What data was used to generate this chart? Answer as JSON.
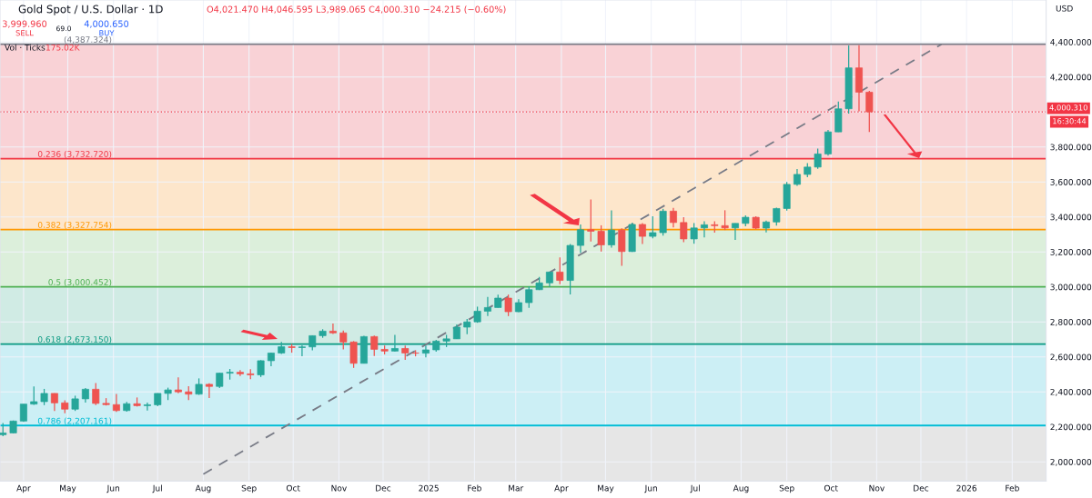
{
  "chart_data": {
    "type": "candlestick",
    "title": "Gold Spot / U.S. Dollar · 1D",
    "subtitle": "O4,021.470 H4,046.595 L3,989.065 C4,000.310 −24.215 (−0.60%)",
    "annotations": [
      "3,999.960",
      "SELL",
      "69.0",
      "4,000.650",
      "BUY",
      "Vol · Ticks",
      "175.02K",
      "USD",
      "16:30:44"
    ],
    "series": [
      {
        "x": [
          "2024-03-18",
          "2024-03-25",
          "2024-04-01",
          "2024-04-08",
          "2024-04-15",
          "2024-04-22",
          "2024-04-29",
          "2024-05-06",
          "2024-05-13",
          "2024-05-20",
          "2024-05-27",
          "2024-06-03",
          "2024-06-10",
          "2024-06-17",
          "2024-06-24",
          "2024-07-01",
          "2024-07-08",
          "2024-07-15",
          "2024-07-22",
          "2024-07-29",
          "2024-08-05",
          "2024-08-12",
          "2024-08-19",
          "2024-08-26",
          "2024-09-02",
          "2024-09-09",
          "2024-09-16",
          "2024-09-23",
          "2024-09-30",
          "2024-10-07",
          "2024-10-14",
          "2024-10-21",
          "2024-10-28",
          "2024-11-04",
          "2024-11-11",
          "2024-11-18",
          "2024-11-25",
          "2024-12-02",
          "2024-12-09",
          "2024-12-16",
          "2024-12-23",
          "2024-12-30",
          "2025-01-06",
          "2025-01-13",
          "2025-01-20",
          "2025-01-27",
          "2025-02-03",
          "2025-02-10",
          "2025-02-17",
          "2025-02-24",
          "2025-03-03",
          "2025-03-10",
          "2025-03-17",
          "2025-03-24",
          "2025-03-31",
          "2025-04-07",
          "2025-04-14",
          "2025-04-21",
          "2025-04-28",
          "2025-05-05",
          "2025-05-12",
          "2025-05-19",
          "2025-05-26",
          "2025-06-02",
          "2025-06-09",
          "2025-06-16",
          "2025-06-23",
          "2025-06-30",
          "2025-07-07",
          "2025-07-14",
          "2025-07-21",
          "2025-07-28",
          "2025-08-04",
          "2025-08-11",
          "2025-08-18",
          "2025-08-25",
          "2025-09-01",
          "2025-09-08",
          "2025-09-15",
          "2025-09-22",
          "2025-09-29",
          "2025-10-06",
          "2025-10-13",
          "2025-10-20",
          "2025-10-27"
        ],
        "ohlc": [
          [
            2155,
            2222,
            2146,
            2165
          ],
          [
            2165,
            2236,
            2163,
            2233
          ],
          [
            2233,
            2330,
            2228,
            2330
          ],
          [
            2330,
            2431,
            2326,
            2344
          ],
          [
            2344,
            2417,
            2324,
            2391
          ],
          [
            2391,
            2392,
            2291,
            2337
          ],
          [
            2337,
            2352,
            2277,
            2301
          ],
          [
            2301,
            2378,
            2291,
            2360
          ],
          [
            2360,
            2422,
            2339,
            2415
          ],
          [
            2415,
            2450,
            2325,
            2334
          ],
          [
            2334,
            2364,
            2322,
            2327
          ],
          [
            2327,
            2388,
            2286,
            2293
          ],
          [
            2293,
            2342,
            2287,
            2332
          ],
          [
            2332,
            2368,
            2316,
            2321
          ],
          [
            2321,
            2339,
            2293,
            2326
          ],
          [
            2326,
            2392,
            2318,
            2391
          ],
          [
            2391,
            2424,
            2353,
            2411
          ],
          [
            2411,
            2483,
            2392,
            2400
          ],
          [
            2400,
            2432,
            2353,
            2387
          ],
          [
            2387,
            2477,
            2383,
            2443
          ],
          [
            2443,
            2449,
            2364,
            2431
          ],
          [
            2431,
            2509,
            2422,
            2507
          ],
          [
            2507,
            2531,
            2470,
            2512
          ],
          [
            2512,
            2525,
            2491,
            2503
          ],
          [
            2503,
            2529,
            2472,
            2497
          ],
          [
            2497,
            2581,
            2485,
            2578
          ],
          [
            2578,
            2625,
            2546,
            2622
          ],
          [
            2622,
            2685,
            2617,
            2658
          ],
          [
            2658,
            2673,
            2624,
            2653
          ],
          [
            2653,
            2666,
            2603,
            2657
          ],
          [
            2657,
            2722,
            2638,
            2721
          ],
          [
            2721,
            2758,
            2709,
            2747
          ],
          [
            2747,
            2790,
            2731,
            2737
          ],
          [
            2737,
            2750,
            2642,
            2685
          ],
          [
            2685,
            2690,
            2537,
            2563
          ],
          [
            2563,
            2721,
            2563,
            2716
          ],
          [
            2716,
            2722,
            2605,
            2643
          ],
          [
            2643,
            2665,
            2614,
            2633
          ],
          [
            2633,
            2726,
            2631,
            2648
          ],
          [
            2648,
            2665,
            2583,
            2622
          ],
          [
            2622,
            2638,
            2603,
            2621
          ],
          [
            2621,
            2665,
            2597,
            2640
          ],
          [
            2640,
            2697,
            2630,
            2690
          ],
          [
            2690,
            2726,
            2656,
            2703
          ],
          [
            2703,
            2786,
            2702,
            2770
          ],
          [
            2770,
            2817,
            2730,
            2800
          ],
          [
            2800,
            2887,
            2795,
            2861
          ],
          [
            2861,
            2942,
            2833,
            2882
          ],
          [
            2882,
            2955,
            2882,
            2936
          ],
          [
            2936,
            2956,
            2833,
            2858
          ],
          [
            2858,
            2930,
            2856,
            2910
          ],
          [
            2910,
            3004,
            2880,
            2984
          ],
          [
            2984,
            3057,
            2982,
            3023
          ],
          [
            3023,
            3086,
            3000,
            3085
          ],
          [
            3085,
            3168,
            3015,
            3037
          ],
          [
            3037,
            3245,
            2957,
            3237
          ],
          [
            3237,
            3357,
            3195,
            3327
          ],
          [
            3327,
            3500,
            3260,
            3318
          ],
          [
            3318,
            3352,
            3202,
            3240
          ],
          [
            3240,
            3438,
            3225,
            3325
          ],
          [
            3325,
            3335,
            3121,
            3202
          ],
          [
            3202,
            3366,
            3200,
            3357
          ],
          [
            3357,
            3365,
            3245,
            3289
          ],
          [
            3289,
            3403,
            3278,
            3310
          ],
          [
            3310,
            3446,
            3293,
            3433
          ],
          [
            3433,
            3452,
            3340,
            3368
          ],
          [
            3368,
            3398,
            3255,
            3274
          ],
          [
            3274,
            3365,
            3247,
            3337
          ],
          [
            3337,
            3375,
            3283,
            3355
          ],
          [
            3355,
            3375,
            3310,
            3350
          ],
          [
            3350,
            3438,
            3325,
            3337
          ],
          [
            3337,
            3363,
            3268,
            3363
          ],
          [
            3363,
            3409,
            3347,
            3398
          ],
          [
            3398,
            3404,
            3330,
            3336
          ],
          [
            3336,
            3379,
            3311,
            3371
          ],
          [
            3371,
            3453,
            3351,
            3448
          ],
          [
            3448,
            3600,
            3436,
            3586
          ],
          [
            3586,
            3674,
            3578,
            3643
          ],
          [
            3643,
            3707,
            3627,
            3685
          ],
          [
            3685,
            3791,
            3675,
            3760
          ],
          [
            3760,
            3897,
            3750,
            3886
          ],
          [
            3886,
            4059,
            3885,
            4018
          ],
          [
            4018,
            4380,
            3990,
            4252
          ],
          [
            4252,
            4382,
            4004,
            4113
          ],
          [
            4113,
            4120,
            3886,
            4000.31
          ]
        ]
      },
      {
        "type": "line",
        "x": [
          "2024-08-01",
          "2025-12-15"
        ],
        "values": [
          1930,
          4387
        ],
        "color": "#787b86",
        "line_style": "dashed"
      }
    ],
    "ref_lines": [
      {
        "axis": "y",
        "value": 4387.324,
        "label": "(4,387.324)",
        "color": "#787b86"
      },
      {
        "axis": "y",
        "value": 3732.72,
        "label": "0.236 (3,732.720)",
        "color": "#f23645"
      },
      {
        "axis": "y",
        "value": 3327.754,
        "label": "0.382 (3,327.754)",
        "color": "#ff9800"
      },
      {
        "axis": "y",
        "value": 3000.452,
        "label": "0.5 (3,000.452)",
        "color": "#4caf50"
      },
      {
        "axis": "y",
        "value": 2673.15,
        "label": "0.618 (2,673.150)",
        "color": "#089981"
      },
      {
        "axis": "y",
        "value": 2207.161,
        "label": "0.786 (2,207.161)",
        "color": "#00bcd4"
      },
      {
        "axis": "y",
        "value": 4000.31,
        "label": "4,000.310",
        "color": "#f23645",
        "line_style": "dotted"
      }
    ],
    "bands": [
      {
        "axis": "y",
        "from": 3732.72,
        "to": 4387.324,
        "color": "#f9d2d6"
      },
      {
        "axis": "y",
        "from": 3327.754,
        "to": 3732.72,
        "color": "#fde6cb"
      },
      {
        "axis": "y",
        "from": 3000.452,
        "to": 3327.754,
        "color": "#dcefdb"
      },
      {
        "axis": "y",
        "from": 2673.15,
        "to": 3000.452,
        "color": "#d0ebe4"
      },
      {
        "axis": "y",
        "from": 2207.161,
        "to": 2673.15,
        "color": "#cceff5"
      },
      {
        "axis": "y",
        "from": 1890,
        "to": 2207.161,
        "color": "#e6e6e6"
      }
    ],
    "xlim": [
      "2024-03-16",
      "2026-02-24"
    ],
    "xticks": [
      {
        "value": "2024-04-01",
        "label": "Apr"
      },
      {
        "value": "2024-05-01",
        "label": "May"
      },
      {
        "value": "2024-06-01",
        "label": "Jun"
      },
      {
        "value": "2024-07-01",
        "label": "Jul"
      },
      {
        "value": "2024-08-01",
        "label": "Aug"
      },
      {
        "value": "2024-09-01",
        "label": "Sep"
      },
      {
        "value": "2024-10-01",
        "label": "Oct"
      },
      {
        "value": "2024-11-01",
        "label": "Nov"
      },
      {
        "value": "2024-12-01",
        "label": "Dec"
      },
      {
        "value": "2025-01-01",
        "label": "2025"
      },
      {
        "value": "2025-02-01",
        "label": "Feb"
      },
      {
        "value": "2025-03-01",
        "label": "Mar"
      },
      {
        "value": "2025-04-01",
        "label": "Apr"
      },
      {
        "value": "2025-05-01",
        "label": "May"
      },
      {
        "value": "2025-06-01",
        "label": "Jun"
      },
      {
        "value": "2025-07-01",
        "label": "Jul"
      },
      {
        "value": "2025-08-01",
        "label": "Aug"
      },
      {
        "value": "2025-09-01",
        "label": "Sep"
      },
      {
        "value": "2025-10-01",
        "label": "Oct"
      },
      {
        "value": "2025-11-01",
        "label": "Nov"
      },
      {
        "value": "2025-12-01",
        "label": "Dec"
      },
      {
        "value": "2026-01-01",
        "label": "2026"
      },
      {
        "value": "2026-02-01",
        "label": "Feb"
      }
    ],
    "ylim": [
      1890,
      4640
    ],
    "yticks": [
      {
        "value": 2000,
        "label": "2,000.000"
      },
      {
        "value": 2200,
        "label": "2,200.000"
      },
      {
        "value": 2400,
        "label": "2,400.000"
      },
      {
        "value": 2600,
        "label": "2,600.000"
      },
      {
        "value": 2800,
        "label": "2,800.000"
      },
      {
        "value": 3000,
        "label": "3,000.000"
      },
      {
        "value": 3200,
        "label": "3,200.000"
      },
      {
        "value": 3400,
        "label": "3,400.000"
      },
      {
        "value": 3600,
        "label": "3,600.000"
      },
      {
        "value": 3800,
        "label": "3,800.000"
      },
      {
        "value": 4000,
        "label": null
      },
      {
        "value": 4200,
        "label": "4,200.000"
      },
      {
        "value": 4400,
        "label": "4,400.000"
      }
    ],
    "grid": true,
    "legend": false
  }
}
